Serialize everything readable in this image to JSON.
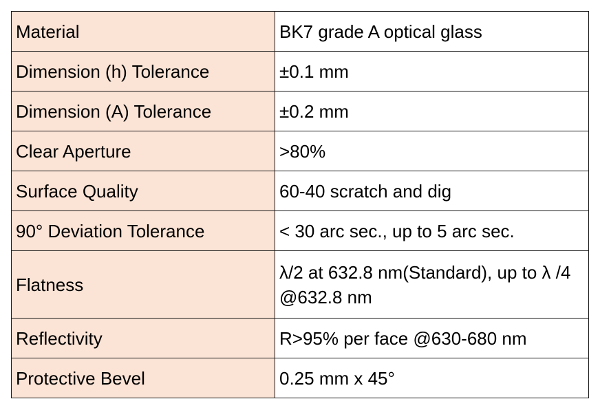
{
  "table": {
    "rows": [
      {
        "key": "Material",
        "value": "BK7 grade A optical glass"
      },
      {
        "key": "Dimension (h) Tolerance",
        "value": "±0.1 mm"
      },
      {
        "key": "Dimension (A) Tolerance",
        "value": "±0.2 mm"
      },
      {
        "key": "Clear Aperture",
        "value": ">80%"
      },
      {
        "key": "Surface Quality",
        "value": "60-40 scratch and dig"
      },
      {
        "key": "90° Deviation Tolerance",
        "value": "< 30 arc sec., up to 5 arc sec."
      },
      {
        "key": "Flatness",
        "value": "λ/2 at 632.8 nm(Standard), up to λ /4 @632.8 nm"
      },
      {
        "key": "Reflectivity",
        "value": "R>95% per face @630-680 nm"
      },
      {
        "key": "Protective Bevel",
        "value": "0.25 mm x 45°"
      }
    ]
  },
  "colors": {
    "key_column_background": "#fbe3d5",
    "value_column_background": "#ffffff",
    "border": "#1a1a1a"
  }
}
